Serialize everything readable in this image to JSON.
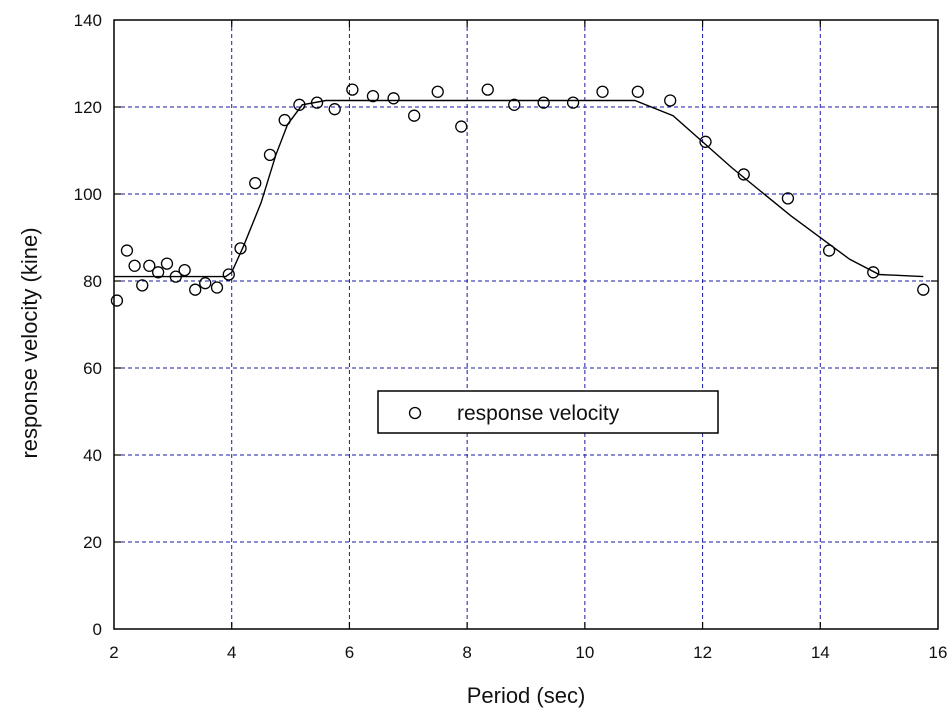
{
  "chart_data": {
    "type": "scatter",
    "xlabel": "Period (sec)",
    "ylabel": "response velocity (kine)",
    "xlim": [
      2,
      16
    ],
    "ylim": [
      0,
      140
    ],
    "xticks": [
      2,
      4,
      6,
      8,
      10,
      12,
      14,
      16
    ],
    "yticks": [
      0,
      20,
      40,
      60,
      80,
      100,
      120,
      140
    ],
    "grid": true,
    "legend_position": "center",
    "series": [
      {
        "name": "response velocity",
        "marker": "open-circle",
        "color": "#000000",
        "points": [
          [
            2.05,
            75.5
          ],
          [
            2.22,
            87.0
          ],
          [
            2.35,
            83.5
          ],
          [
            2.48,
            79.0
          ],
          [
            2.6,
            83.5
          ],
          [
            2.75,
            82.0
          ],
          [
            2.9,
            84.0
          ],
          [
            3.05,
            81.0
          ],
          [
            3.2,
            82.5
          ],
          [
            3.38,
            78.0
          ],
          [
            3.55,
            79.5
          ],
          [
            3.75,
            78.5
          ],
          [
            3.95,
            81.5
          ],
          [
            4.15,
            87.5
          ],
          [
            4.4,
            102.5
          ],
          [
            4.65,
            109.0
          ],
          [
            4.9,
            117.0
          ],
          [
            5.15,
            120.5
          ],
          [
            5.45,
            121.0
          ],
          [
            5.75,
            119.5
          ],
          [
            6.05,
            124.0
          ],
          [
            6.4,
            122.5
          ],
          [
            6.75,
            122.0
          ],
          [
            7.1,
            118.0
          ],
          [
            7.5,
            123.5
          ],
          [
            7.9,
            115.5
          ],
          [
            8.35,
            124.0
          ],
          [
            8.8,
            120.5
          ],
          [
            9.3,
            121.0
          ],
          [
            9.8,
            121.0
          ],
          [
            10.3,
            123.5
          ],
          [
            10.9,
            123.5
          ],
          [
            11.45,
            121.5
          ],
          [
            12.05,
            112.0
          ],
          [
            12.7,
            104.5
          ],
          [
            13.45,
            99.0
          ],
          [
            14.15,
            87.0
          ],
          [
            14.9,
            82.0
          ],
          [
            15.75,
            78.0
          ]
        ]
      },
      {
        "type": "line",
        "color": "#000000",
        "points": [
          [
            2.0,
            81.0
          ],
          [
            3.9,
            81.0
          ],
          [
            4.0,
            82.0
          ],
          [
            4.2,
            88.0
          ],
          [
            4.5,
            98.0
          ],
          [
            4.75,
            109.0
          ],
          [
            4.95,
            116.0
          ],
          [
            5.2,
            120.5
          ],
          [
            5.6,
            121.5
          ],
          [
            10.85,
            121.5
          ],
          [
            11.5,
            118.0
          ],
          [
            12.5,
            106.0
          ],
          [
            13.5,
            95.0
          ],
          [
            14.5,
            85.0
          ],
          [
            15.0,
            81.5
          ],
          [
            15.75,
            81.0
          ]
        ]
      }
    ]
  }
}
